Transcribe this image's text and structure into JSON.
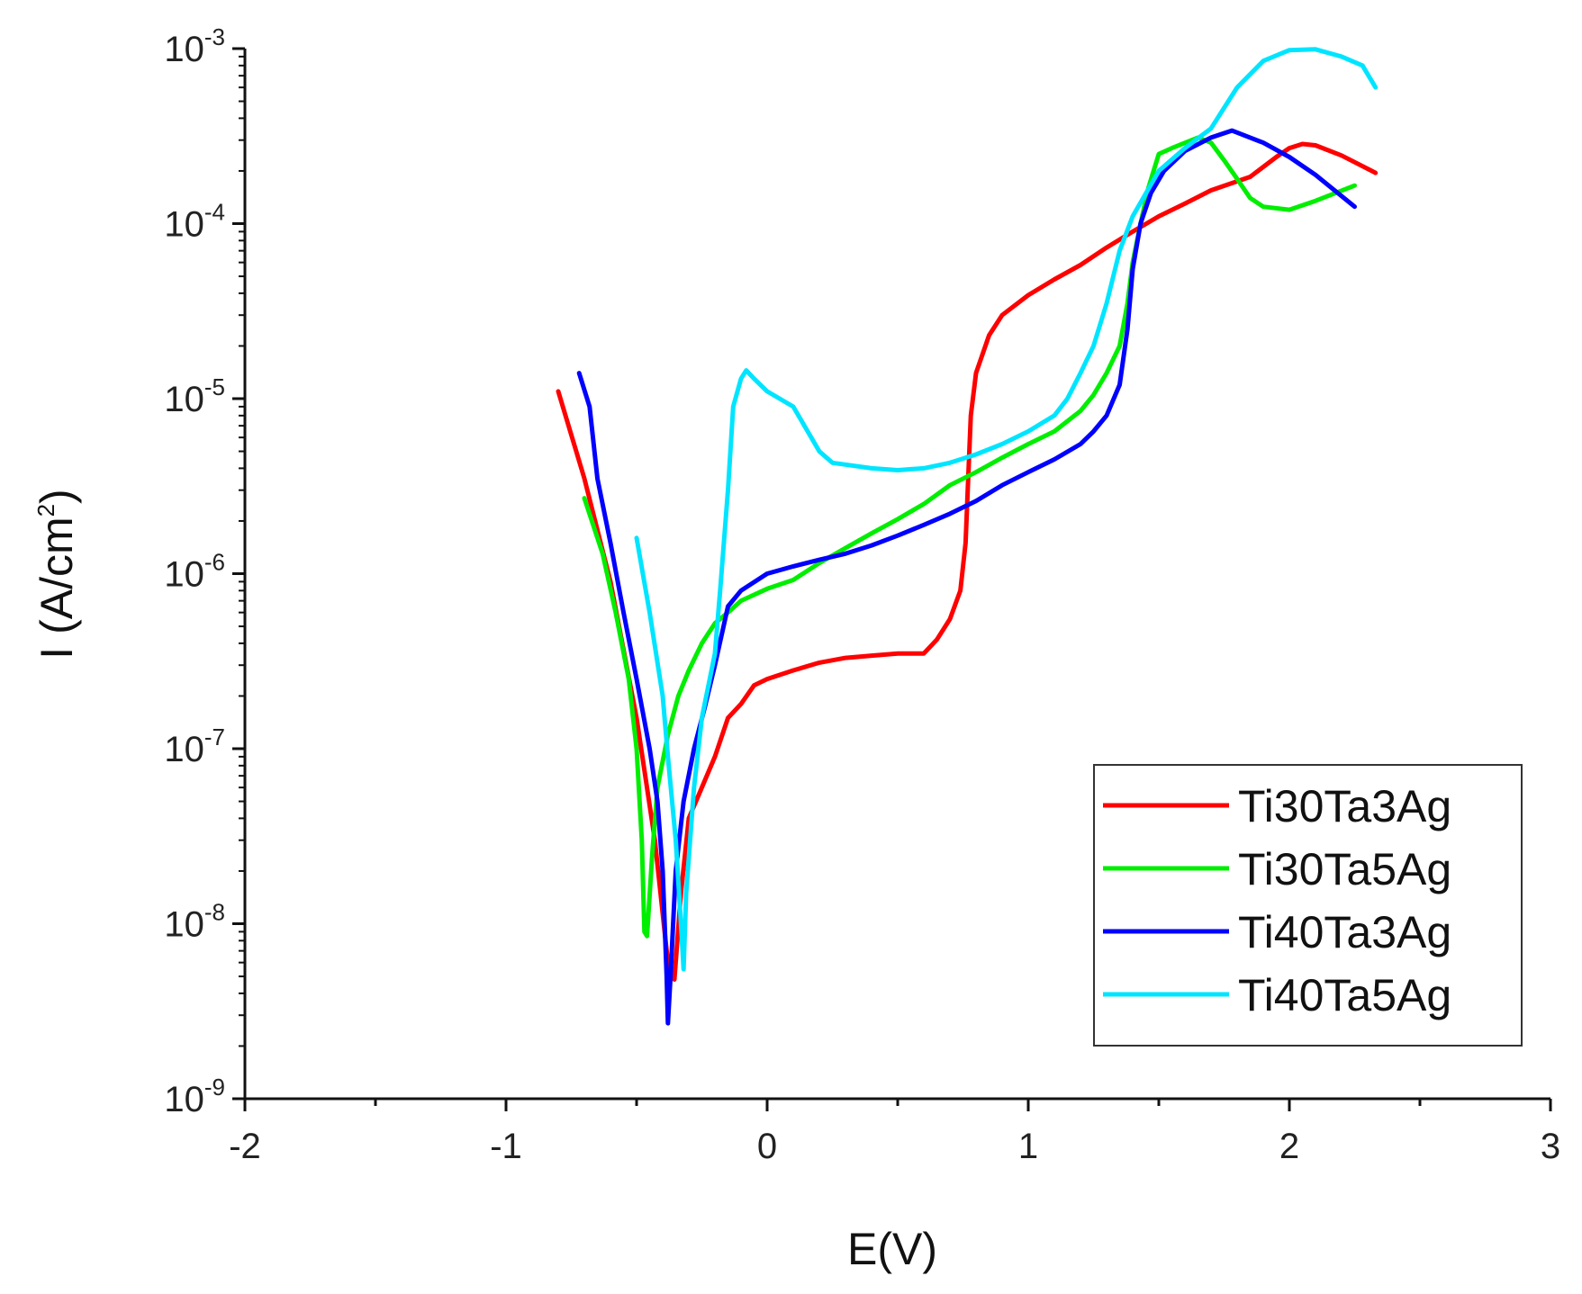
{
  "chart_data": {
    "type": "line",
    "title": "",
    "xlabel": "E(V)",
    "ylabel": "I (A/cm²)",
    "ylabel_parts": {
      "main": "I (A/cm",
      "sup": "2",
      "close": ")"
    },
    "xscale": "linear",
    "yscale": "log",
    "xlim": [
      -2,
      3
    ],
    "ylim": [
      1e-09,
      0.001
    ],
    "x_ticks": [
      -2,
      -1,
      0,
      1,
      2,
      3
    ],
    "x_tick_labels": [
      "-2",
      "-1",
      "0",
      "1",
      "2",
      "3"
    ],
    "y_ticks_exp": [
      -9,
      -8,
      -7,
      -6,
      -5,
      -4,
      -3
    ],
    "y_tick_labels": [
      {
        "base": "10",
        "exp": "-9"
      },
      {
        "base": "10",
        "exp": "-8"
      },
      {
        "base": "10",
        "exp": "-7"
      },
      {
        "base": "10",
        "exp": "-6"
      },
      {
        "base": "10",
        "exp": "-5"
      },
      {
        "base": "10",
        "exp": "-4"
      },
      {
        "base": "10",
        "exp": "-3"
      }
    ],
    "grid": false,
    "legend_position": "bottom-right",
    "series": [
      {
        "name": "Ti30Ta3Ag",
        "color": "#ff0000",
        "points": [
          [
            -0.8,
            1.1e-05
          ],
          [
            -0.7,
            3.5e-06
          ],
          [
            -0.6,
            9e-07
          ],
          [
            -0.5,
            1.5e-07
          ],
          [
            -0.43,
            3e-08
          ],
          [
            -0.38,
            6e-09
          ],
          [
            -0.355,
            4.8e-09
          ],
          [
            -0.33,
            1.5e-08
          ],
          [
            -0.3,
            4e-08
          ],
          [
            -0.25,
            6e-08
          ],
          [
            -0.2,
            9e-08
          ],
          [
            -0.15,
            1.5e-07
          ],
          [
            -0.1,
            1.8e-07
          ],
          [
            -0.05,
            2.3e-07
          ],
          [
            0,
            2.5e-07
          ],
          [
            0.1,
            2.8e-07
          ],
          [
            0.2,
            3.1e-07
          ],
          [
            0.3,
            3.3e-07
          ],
          [
            0.4,
            3.4e-07
          ],
          [
            0.5,
            3.5e-07
          ],
          [
            0.6,
            3.5e-07
          ],
          [
            0.65,
            4.2e-07
          ],
          [
            0.7,
            5.5e-07
          ],
          [
            0.74,
            8e-07
          ],
          [
            0.76,
            1.5e-06
          ],
          [
            0.77,
            3.5e-06
          ],
          [
            0.78,
            8e-06
          ],
          [
            0.8,
            1.4e-05
          ],
          [
            0.85,
            2.3e-05
          ],
          [
            0.9,
            3e-05
          ],
          [
            1.0,
            3.9e-05
          ],
          [
            1.1,
            4.8e-05
          ],
          [
            1.2,
            5.8e-05
          ],
          [
            1.3,
            7.3e-05
          ],
          [
            1.4,
            9e-05
          ],
          [
            1.5,
            0.00011
          ],
          [
            1.6,
            0.00013
          ],
          [
            1.7,
            0.000155
          ],
          [
            1.85,
            0.000185
          ],
          [
            1.95,
            0.00024
          ],
          [
            2.0,
            0.00027
          ],
          [
            2.05,
            0.000285
          ],
          [
            2.1,
            0.00028
          ],
          [
            2.2,
            0.000245
          ],
          [
            2.33,
            0.000195
          ]
        ]
      },
      {
        "name": "Ti30Ta5Ag",
        "color": "#00ee00",
        "points": [
          [
            -0.7,
            2.7e-06
          ],
          [
            -0.63,
            1.3e-06
          ],
          [
            -0.58,
            6e-07
          ],
          [
            -0.53,
            2.5e-07
          ],
          [
            -0.5,
            1e-07
          ],
          [
            -0.48,
            3e-08
          ],
          [
            -0.47,
            9e-09
          ],
          [
            -0.46,
            8.5e-09
          ],
          [
            -0.44,
            2.5e-08
          ],
          [
            -0.42,
            6e-08
          ],
          [
            -0.38,
            1.2e-07
          ],
          [
            -0.34,
            2e-07
          ],
          [
            -0.3,
            2.8e-07
          ],
          [
            -0.25,
            4e-07
          ],
          [
            -0.2,
            5.2e-07
          ],
          [
            -0.15,
            6e-07
          ],
          [
            -0.1,
            7e-07
          ],
          [
            0,
            8.2e-07
          ],
          [
            0.1,
            9.2e-07
          ],
          [
            0.2,
            1.15e-06
          ],
          [
            0.3,
            1.4e-06
          ],
          [
            0.4,
            1.7e-06
          ],
          [
            0.5,
            2.05e-06
          ],
          [
            0.6,
            2.5e-06
          ],
          [
            0.7,
            3.2e-06
          ],
          [
            0.8,
            3.8e-06
          ],
          [
            0.9,
            4.6e-06
          ],
          [
            1.0,
            5.5e-06
          ],
          [
            1.1,
            6.5e-06
          ],
          [
            1.2,
            8.5e-06
          ],
          [
            1.25,
            1.05e-05
          ],
          [
            1.3,
            1.4e-05
          ],
          [
            1.35,
            2e-05
          ],
          [
            1.38,
            3.5e-05
          ],
          [
            1.4,
            6e-05
          ],
          [
            1.43,
            0.0001
          ],
          [
            1.46,
            0.00016
          ],
          [
            1.5,
            0.00025
          ],
          [
            1.55,
            0.00027
          ],
          [
            1.65,
            0.00031
          ],
          [
            1.7,
            0.00029
          ],
          [
            1.75,
            0.00023
          ],
          [
            1.8,
            0.00018
          ],
          [
            1.85,
            0.00014
          ],
          [
            1.9,
            0.000125
          ],
          [
            2.0,
            0.00012
          ],
          [
            2.1,
            0.000135
          ],
          [
            2.25,
            0.000165
          ]
        ]
      },
      {
        "name": "Ti40Ta3Ag",
        "color": "#0000ff",
        "points": [
          [
            -0.72,
            1.4e-05
          ],
          [
            -0.68,
            9e-06
          ],
          [
            -0.65,
            3.5e-06
          ],
          [
            -0.6,
            1.5e-06
          ],
          [
            -0.55,
            6e-07
          ],
          [
            -0.5,
            2.5e-07
          ],
          [
            -0.45,
            1e-07
          ],
          [
            -0.42,
            5e-08
          ],
          [
            -0.4,
            2e-08
          ],
          [
            -0.385,
            5e-09
          ],
          [
            -0.38,
            2.7e-09
          ],
          [
            -0.37,
            5e-09
          ],
          [
            -0.35,
            2e-08
          ],
          [
            -0.32,
            5e-08
          ],
          [
            -0.28,
            1e-07
          ],
          [
            -0.24,
            1.7e-07
          ],
          [
            -0.2,
            3e-07
          ],
          [
            -0.15,
            6.5e-07
          ],
          [
            -0.1,
            8e-07
          ],
          [
            0,
            1e-06
          ],
          [
            0.1,
            1.1e-06
          ],
          [
            0.2,
            1.2e-06
          ],
          [
            0.3,
            1.3e-06
          ],
          [
            0.4,
            1.45e-06
          ],
          [
            0.5,
            1.65e-06
          ],
          [
            0.6,
            1.9e-06
          ],
          [
            0.7,
            2.2e-06
          ],
          [
            0.8,
            2.6e-06
          ],
          [
            0.9,
            3.2e-06
          ],
          [
            1.0,
            3.8e-06
          ],
          [
            1.1,
            4.5e-06
          ],
          [
            1.2,
            5.5e-06
          ],
          [
            1.25,
            6.5e-06
          ],
          [
            1.3,
            8e-06
          ],
          [
            1.35,
            1.2e-05
          ],
          [
            1.38,
            2.5e-05
          ],
          [
            1.4,
            5.5e-05
          ],
          [
            1.43,
            0.0001
          ],
          [
            1.47,
            0.00015
          ],
          [
            1.52,
            0.0002
          ],
          [
            1.6,
            0.00026
          ],
          [
            1.7,
            0.00031
          ],
          [
            1.78,
            0.00034
          ],
          [
            1.9,
            0.00029
          ],
          [
            2.0,
            0.00024
          ],
          [
            2.1,
            0.00019
          ],
          [
            2.25,
            0.000125
          ]
        ]
      },
      {
        "name": "Ti40Ta5Ag",
        "color": "#00e5ff",
        "points": [
          [
            -0.5,
            1.6e-06
          ],
          [
            -0.45,
            6e-07
          ],
          [
            -0.4,
            2e-07
          ],
          [
            -0.38,
            9e-08
          ],
          [
            -0.35,
            3e-08
          ],
          [
            -0.33,
            1e-08
          ],
          [
            -0.32,
            5.5e-09
          ],
          [
            -0.31,
            1.5e-08
          ],
          [
            -0.28,
            6e-08
          ],
          [
            -0.25,
            1.5e-07
          ],
          [
            -0.2,
            3.5e-07
          ],
          [
            -0.18,
            8e-07
          ],
          [
            -0.15,
            3e-06
          ],
          [
            -0.13,
            9e-06
          ],
          [
            -0.1,
            1.3e-05
          ],
          [
            -0.08,
            1.45e-05
          ],
          [
            -0.05,
            1.3e-05
          ],
          [
            0,
            1.1e-05
          ],
          [
            0.1,
            9e-06
          ],
          [
            0.2,
            5e-06
          ],
          [
            0.25,
            4.3e-06
          ],
          [
            0.3,
            4.2e-06
          ],
          [
            0.4,
            4e-06
          ],
          [
            0.5,
            3.9e-06
          ],
          [
            0.6,
            4e-06
          ],
          [
            0.7,
            4.3e-06
          ],
          [
            0.8,
            4.8e-06
          ],
          [
            0.9,
            5.5e-06
          ],
          [
            1.0,
            6.5e-06
          ],
          [
            1.1,
            8e-06
          ],
          [
            1.15,
            1e-05
          ],
          [
            1.2,
            1.4e-05
          ],
          [
            1.25,
            2e-05
          ],
          [
            1.3,
            3.5e-05
          ],
          [
            1.35,
            7e-05
          ],
          [
            1.4,
            0.00011
          ],
          [
            1.5,
            0.0002
          ],
          [
            1.6,
            0.00027
          ],
          [
            1.7,
            0.00035
          ],
          [
            1.8,
            0.0006
          ],
          [
            1.9,
            0.00085
          ],
          [
            2.0,
            0.00098
          ],
          [
            2.1,
            0.00099
          ],
          [
            2.2,
            0.0009
          ],
          [
            2.28,
            0.0008
          ],
          [
            2.33,
            0.0006
          ]
        ]
      }
    ]
  }
}
